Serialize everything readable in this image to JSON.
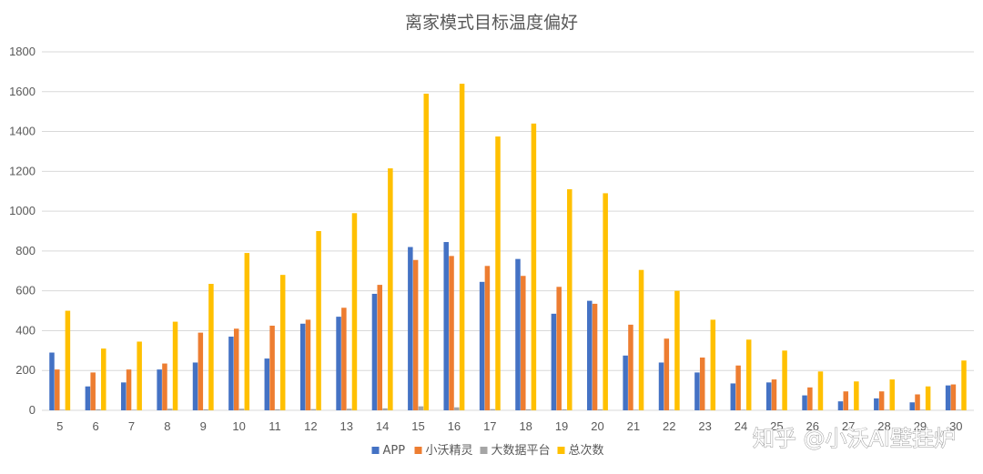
{
  "chart_data": {
    "type": "bar",
    "title": "离家模式目标温度偏好",
    "xlabel": "",
    "ylabel": "",
    "ylim": [
      0,
      1800
    ],
    "yticks": [
      0,
      200,
      400,
      600,
      800,
      1000,
      1200,
      1400,
      1600,
      1800
    ],
    "grid": true,
    "legend_position": "bottom",
    "categories": [
      "5",
      "6",
      "7",
      "8",
      "9",
      "10",
      "11",
      "12",
      "13",
      "14",
      "15",
      "16",
      "17",
      "18",
      "19",
      "20",
      "21",
      "22",
      "23",
      "24",
      "25",
      "26",
      "27",
      "28",
      "29",
      "30"
    ],
    "series": [
      {
        "name": "APP",
        "color": "#4472c4",
        "values": [
          290,
          120,
          140,
          205,
          240,
          370,
          260,
          435,
          470,
          585,
          820,
          845,
          645,
          760,
          485,
          550,
          275,
          240,
          190,
          135,
          140,
          75,
          45,
          60,
          40,
          125
        ]
      },
      {
        "name": "小沃精灵",
        "color": "#ed7d31",
        "values": [
          205,
          190,
          205,
          235,
          390,
          410,
          425,
          455,
          515,
          630,
          755,
          775,
          725,
          675,
          620,
          535,
          430,
          360,
          265,
          225,
          155,
          115,
          95,
          95,
          80,
          130
        ]
      },
      {
        "name": "大数据平台",
        "color": "#a5a5a5",
        "values": [
          3,
          5,
          3,
          8,
          5,
          8,
          5,
          6,
          8,
          10,
          20,
          15,
          6,
          5,
          5,
          5,
          3,
          3,
          3,
          3,
          3,
          3,
          3,
          3,
          3,
          3
        ]
      },
      {
        "name": "总次数",
        "color": "#ffc000",
        "values": [
          500,
          310,
          345,
          445,
          635,
          790,
          680,
          900,
          990,
          1215,
          1590,
          1640,
          1375,
          1440,
          1110,
          1090,
          705,
          600,
          455,
          355,
          300,
          195,
          145,
          155,
          120,
          250
        ]
      }
    ]
  },
  "watermark": "知乎 @小沃AI壁挂炉"
}
